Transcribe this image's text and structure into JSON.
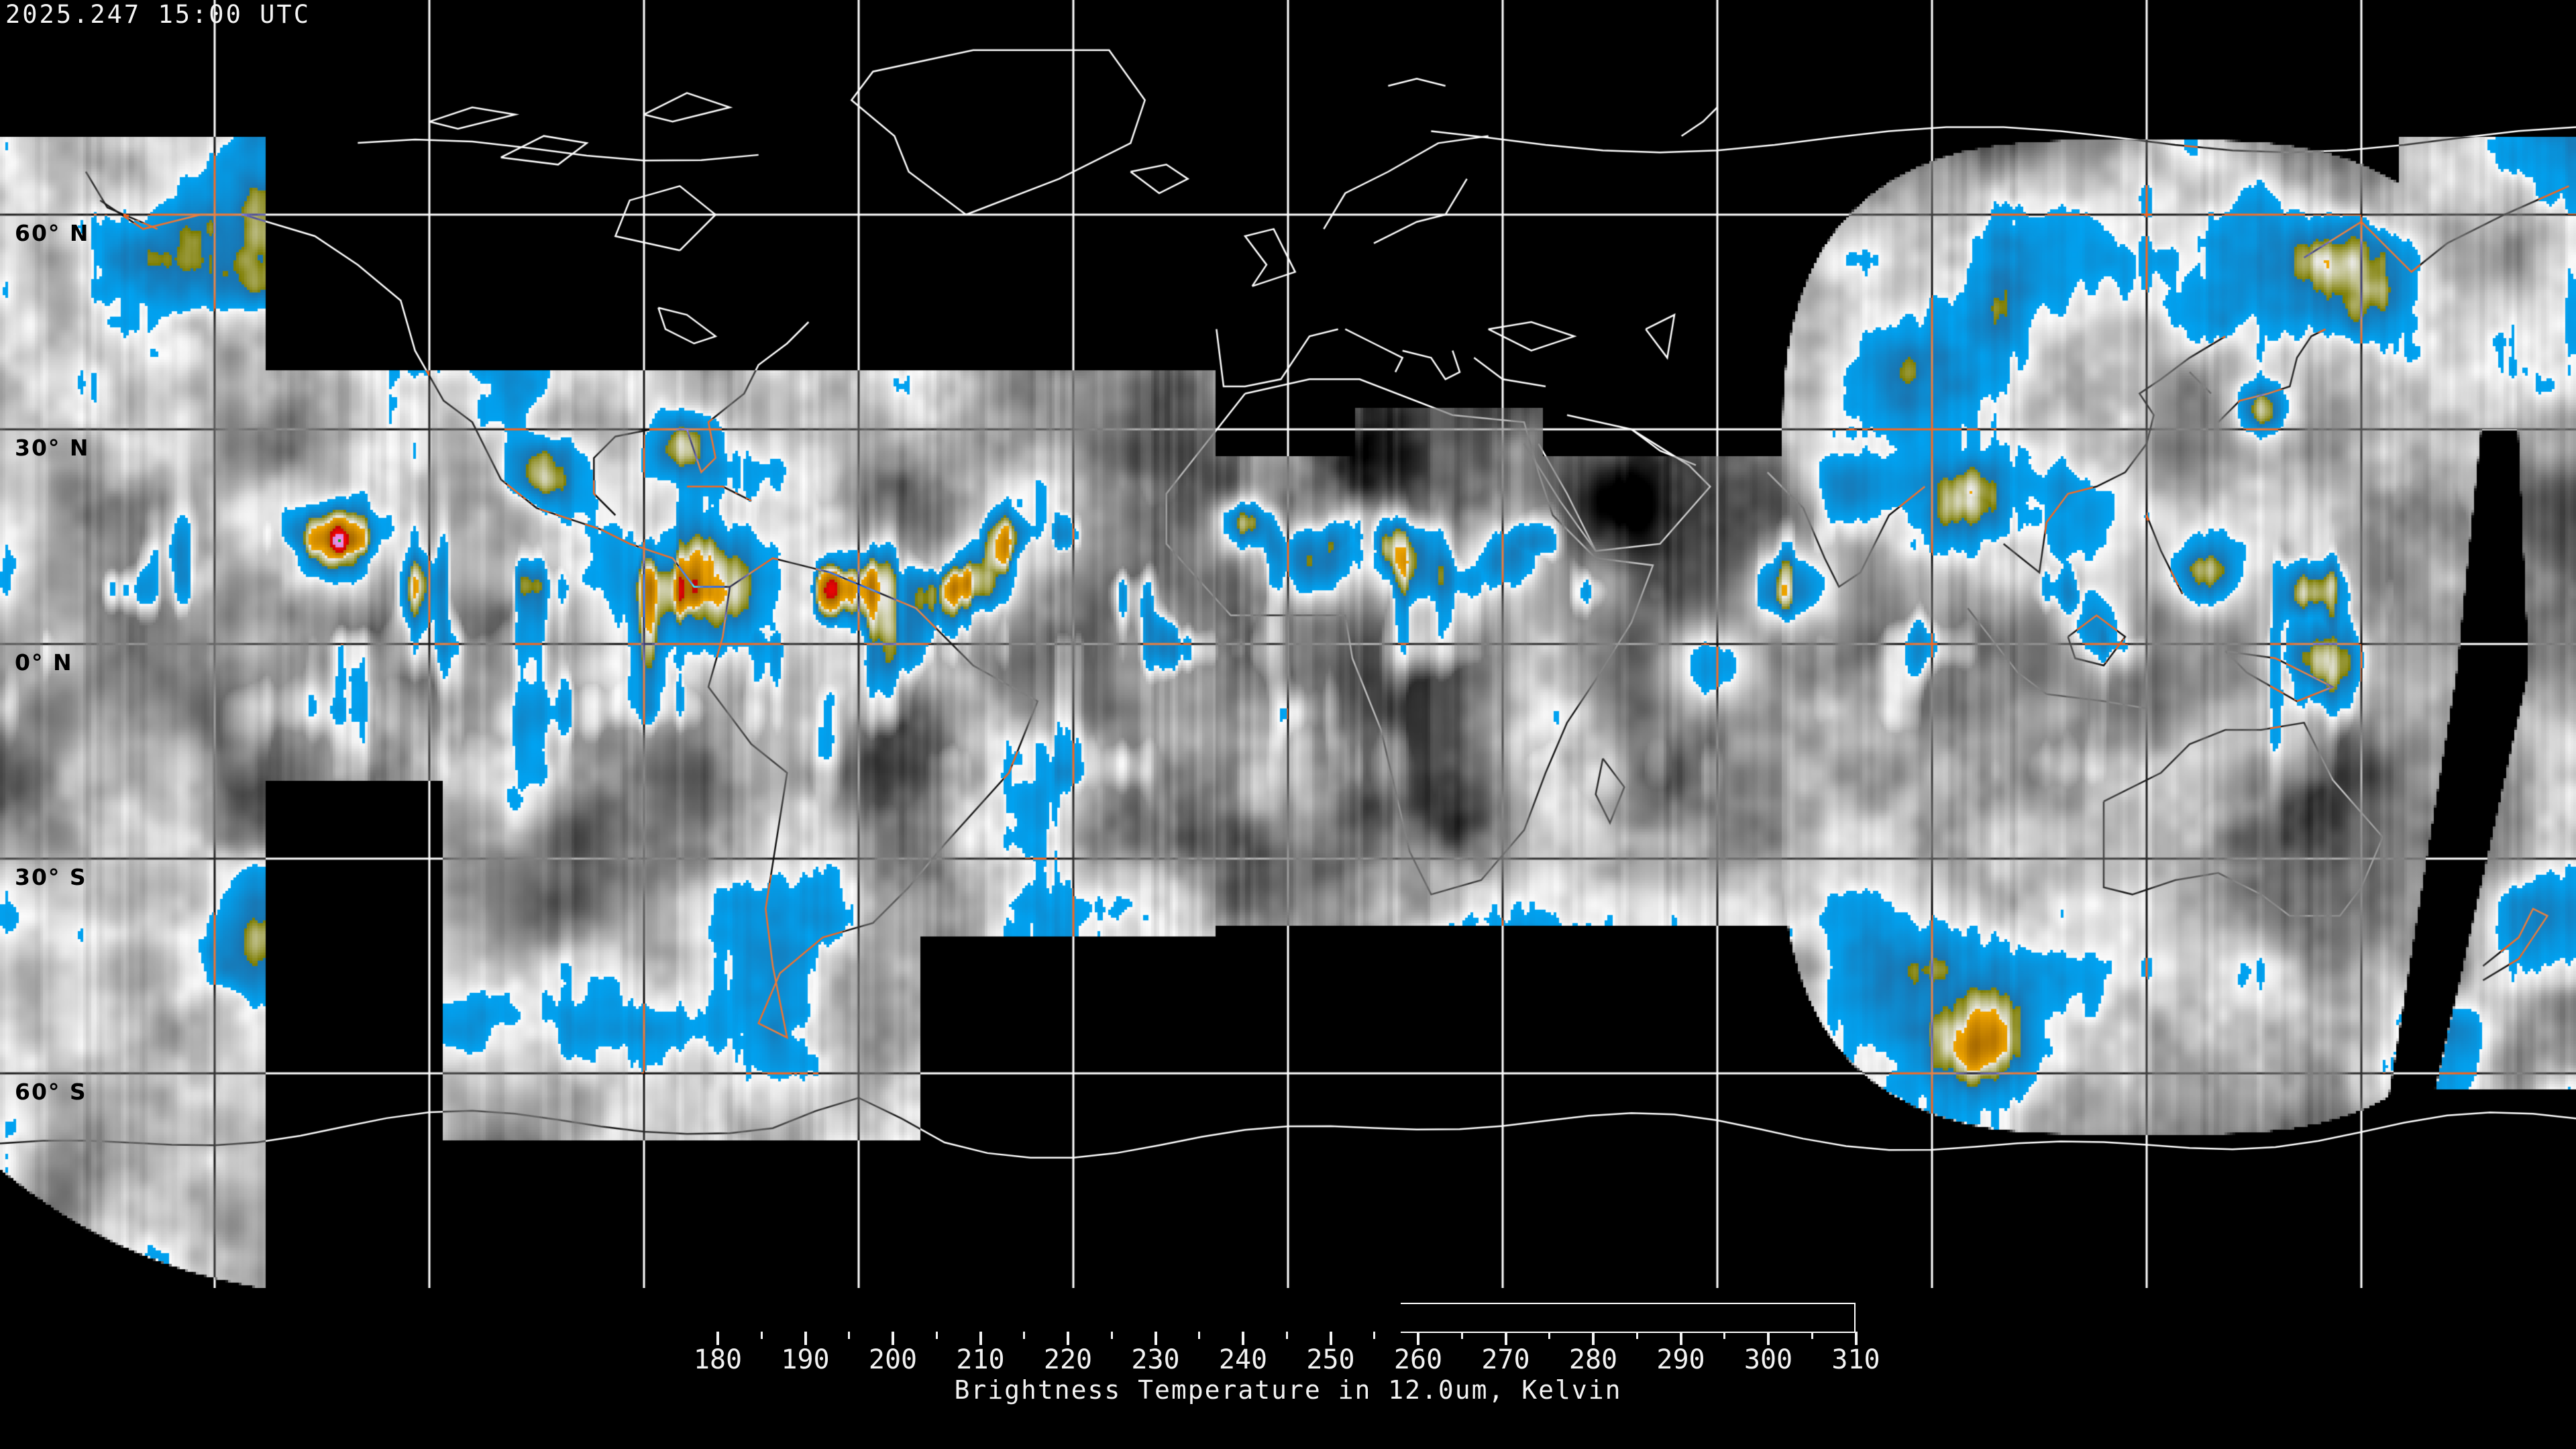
{
  "header": {
    "timestamp": "2025.247 15:00 UTC"
  },
  "map": {
    "projection": "equirectangular",
    "background_color": "#000000",
    "coastline_color": "#ffffff",
    "grid": {
      "lon_step_deg": 30,
      "lat_step_deg": 30,
      "line_color": "#ffffff"
    },
    "latitude_labels": [
      {
        "label": "60° N",
        "lat": 60
      },
      {
        "label": "30° N",
        "lat": 30
      },
      {
        "label": "0° N",
        "lat": 0
      },
      {
        "label": "30° S",
        "lat": -30
      },
      {
        "label": "60° S",
        "lat": -60
      }
    ]
  },
  "colorbar": {
    "caption": "Brightness Temperature in 12.0um, Kelvin",
    "units": "Kelvin",
    "range_kelvin": [
      180,
      310
    ],
    "major_tick_step_kelvin": 10,
    "minor_tick_step_kelvin": 5,
    "tick_labels": [
      "180",
      "190",
      "200",
      "210",
      "220",
      "230",
      "240",
      "250",
      "260",
      "270",
      "280",
      "290",
      "300",
      "310"
    ],
    "segments": [
      {
        "from": 180,
        "to": 185,
        "c0": "#00e400",
        "c1": "#00ae00"
      },
      {
        "from": 185,
        "to": 191,
        "c0": "#f78af0",
        "c1": "#c98fd4"
      },
      {
        "from": 191,
        "to": 200,
        "c0": "#f20505",
        "c1": "#c30505"
      },
      {
        "from": 200,
        "to": 219,
        "c0": "#a56800",
        "c1": "#f2a700"
      },
      {
        "from": 219,
        "to": 235,
        "c0": "#ededed00",
        "c1": "#7d7d00"
      },
      {
        "from": 235,
        "to": 258,
        "c0": "#1a74b0",
        "c1": "#00a3f2"
      },
      {
        "from": 258,
        "to": 309,
        "c0": "#fbfbfb",
        "c1": "#000000"
      }
    ],
    "outline_color": "#ffffff"
  }
}
